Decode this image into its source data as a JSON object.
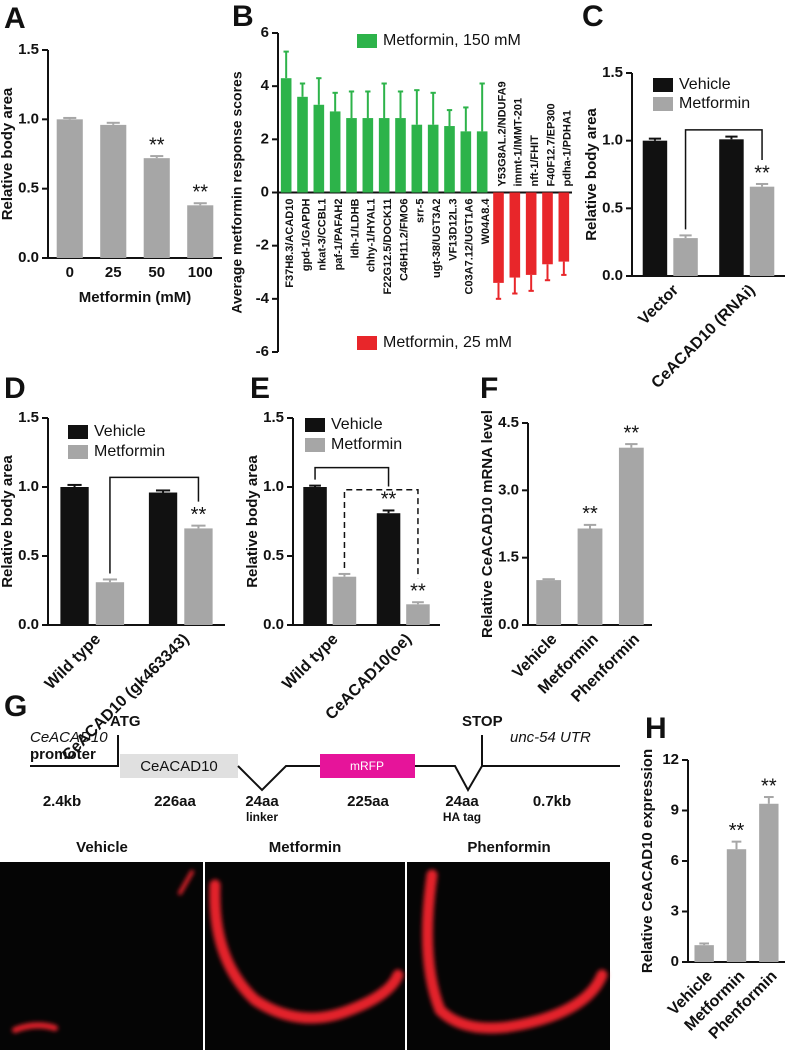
{
  "chart_data": [
    {
      "type": "bar",
      "panel": "A",
      "y_label": "Relative body area",
      "x_label": "Metformin (mM)",
      "categories": [
        "0",
        "25",
        "50",
        "100"
      ],
      "values": [
        1.0,
        0.96,
        0.72,
        0.38
      ],
      "errors": [
        0.01,
        0.015,
        0.015,
        0.015
      ],
      "annotations": [
        null,
        null,
        "**",
        "**"
      ],
      "color": "#a6a6a6",
      "ylim": [
        0,
        1.5
      ],
      "yticks": [
        {
          "value": 0,
          "label": "0.0"
        },
        {
          "value": 0.5,
          "label": "0.5"
        },
        {
          "value": 1,
          "label": "1.0"
        },
        {
          "value": 1.5,
          "label": "1.5"
        }
      ]
    },
    {
      "type": "bar",
      "panel": "B",
      "y_label": "Average metformin response scores",
      "categories": [
        "F37H8.3/ACAD10",
        "gpd-1/GAPDH",
        "nkat-3/CCBL1",
        "paf-1/PAFAH2",
        "ldh-1/LDHB",
        "chhy-1/HYAL1",
        "F22G12.5/DOCK11",
        "C46H11.2/FMO6",
        "srr-5",
        "ugt-38/UGT3A2",
        "VF13D12L.3",
        "C03A7.12/UGT1A6",
        "W04A8.4",
        "Y53G8AL.2/NDUFA9",
        "immt-1/IMMT-201",
        "nft-1/FHIT",
        "F40F12.7/EP300",
        "pdha-1/PDHA1"
      ],
      "series": [
        {
          "name": "Metformin, 150 mM",
          "color": "#2db34a",
          "values": [
            4.3,
            3.6,
            3.3,
            3.05,
            2.8,
            2.8,
            2.8,
            2.8,
            2.55,
            2.55,
            2.5,
            2.3,
            2.3,
            null,
            null,
            null,
            null,
            null
          ],
          "errors": [
            1.0,
            0.5,
            1.0,
            0.7,
            1.0,
            1.0,
            1.3,
            1.0,
            1.3,
            1.2,
            0.6,
            0.9,
            1.8,
            null,
            null,
            null,
            null,
            null
          ]
        },
        {
          "name": "Metformin, 25 mM",
          "color": "#e8262a",
          "values": [
            null,
            null,
            null,
            null,
            null,
            null,
            null,
            null,
            null,
            null,
            null,
            null,
            null,
            -3.4,
            -3.2,
            -3.1,
            -2.7,
            -2.6
          ],
          "errors": [
            null,
            null,
            null,
            null,
            null,
            null,
            null,
            null,
            null,
            null,
            null,
            null,
            null,
            0.6,
            0.6,
            0.6,
            0.6,
            0.5
          ]
        }
      ],
      "ylim": [
        -6,
        6
      ],
      "yticks": [
        -6,
        -4,
        -2,
        0,
        2,
        4,
        6
      ]
    },
    {
      "type": "bar",
      "panel": "C",
      "y_label": "Relative body area",
      "categories": [
        "Vector",
        "CeACAD10 (RNAi)"
      ],
      "series": [
        {
          "name": "Vehicle",
          "color": "#111111",
          "values": [
            1.0,
            1.01
          ],
          "errors": [
            0.015,
            0.02
          ],
          "annotations": [
            null,
            null
          ]
        },
        {
          "name": "Metformin",
          "color": "#a6a6a6",
          "values": [
            0.28,
            0.66
          ],
          "errors": [
            0.02,
            0.02
          ],
          "annotations": [
            null,
            "**"
          ]
        }
      ],
      "ylim": [
        0,
        1.5
      ],
      "yticks": [
        {
          "value": 0,
          "label": "0.0"
        },
        {
          "value": 0.5,
          "label": "0.5"
        },
        {
          "value": 1,
          "label": "1.0"
        },
        {
          "value": 1.5,
          "label": "1.5"
        }
      ]
    },
    {
      "type": "bar",
      "panel": "D",
      "y_label": "Relative body area",
      "categories": [
        "Wild type",
        "CeACAD10 (gk463343)"
      ],
      "series": [
        {
          "name": "Vehicle",
          "color": "#111111",
          "values": [
            1.0,
            0.96
          ],
          "errors": [
            0.015,
            0.015
          ],
          "annotations": [
            null,
            null
          ]
        },
        {
          "name": "Metformin",
          "color": "#a6a6a6",
          "values": [
            0.31,
            0.7
          ],
          "errors": [
            0.02,
            0.02
          ],
          "annotations": [
            null,
            "**"
          ]
        }
      ],
      "ylim": [
        0,
        1.5
      ],
      "yticks": [
        {
          "value": 0,
          "label": "0.0"
        },
        {
          "value": 0.5,
          "label": "0.5"
        },
        {
          "value": 1,
          "label": "1.0"
        },
        {
          "value": 1.5,
          "label": "1.5"
        }
      ]
    },
    {
      "type": "bar",
      "panel": "E",
      "y_label": "Relative body area",
      "categories": [
        "Wild type",
        "CeACAD10(oe)"
      ],
      "series": [
        {
          "name": "Vehicle",
          "color": "#111111",
          "values": [
            1.0,
            0.81
          ],
          "errors": [
            0.01,
            0.02
          ],
          "annotations": [
            null,
            "**"
          ]
        },
        {
          "name": "Metformin",
          "color": "#a6a6a6",
          "values": [
            0.35,
            0.15
          ],
          "errors": [
            0.02,
            0.015
          ],
          "annotations": [
            null,
            "**"
          ]
        }
      ],
      "ylim": [
        0,
        1.5
      ],
      "yticks": [
        {
          "value": 0,
          "label": "0.0"
        },
        {
          "value": 0.5,
          "label": "0.5"
        },
        {
          "value": 1,
          "label": "1.0"
        },
        {
          "value": 1.5,
          "label": "1.5"
        }
      ]
    },
    {
      "type": "bar",
      "panel": "F",
      "y_label": "Relative CeACAD10 mRNA level",
      "categories": [
        "Vehicle",
        "Metformin",
        "Phenformin"
      ],
      "values": [
        1.0,
        2.15,
        3.95
      ],
      "errors": [
        0.02,
        0.08,
        0.08
      ],
      "annotations": [
        null,
        "**",
        "**"
      ],
      "color": "#a6a6a6",
      "ylim": [
        0,
        4.5
      ],
      "yticks": [
        {
          "value": 0,
          "label": "0.0"
        },
        {
          "value": 1.5,
          "label": "1.5"
        },
        {
          "value": 3,
          "label": "3.0"
        },
        {
          "value": 4.5,
          "label": "4.5"
        }
      ]
    },
    {
      "type": "bar",
      "panel": "H",
      "y_label": "Relative CeACAD10 expression",
      "categories": [
        "Vehicle",
        "Metformin",
        "Phenformin"
      ],
      "values": [
        1.0,
        6.7,
        9.4
      ],
      "errors": [
        0.1,
        0.45,
        0.4
      ],
      "annotations": [
        null,
        "**",
        "**"
      ],
      "color": "#a6a6a6",
      "ylim": [
        0,
        12
      ],
      "yticks": [
        0,
        3,
        6,
        9,
        12
      ]
    }
  ],
  "diagram": {
    "panel": "G",
    "promoter_gene": "CeACAD10",
    "promoter": "promoter",
    "start": "ATG",
    "stop": "STOP",
    "utr": "unc-54 UTR",
    "domain_1": "CeACAD10",
    "domain_2": "mRFP",
    "promoter_size": "2.4kb",
    "domain_1_size": "226aa",
    "linker_size": "24aa",
    "domain_2_size": "225aa",
    "tag_size": "24aa",
    "utr_size": "0.7kb",
    "linker": "linker",
    "tag": "HA tag",
    "images": [
      "Vehicle",
      "Metformin",
      "Phenformin"
    ]
  }
}
